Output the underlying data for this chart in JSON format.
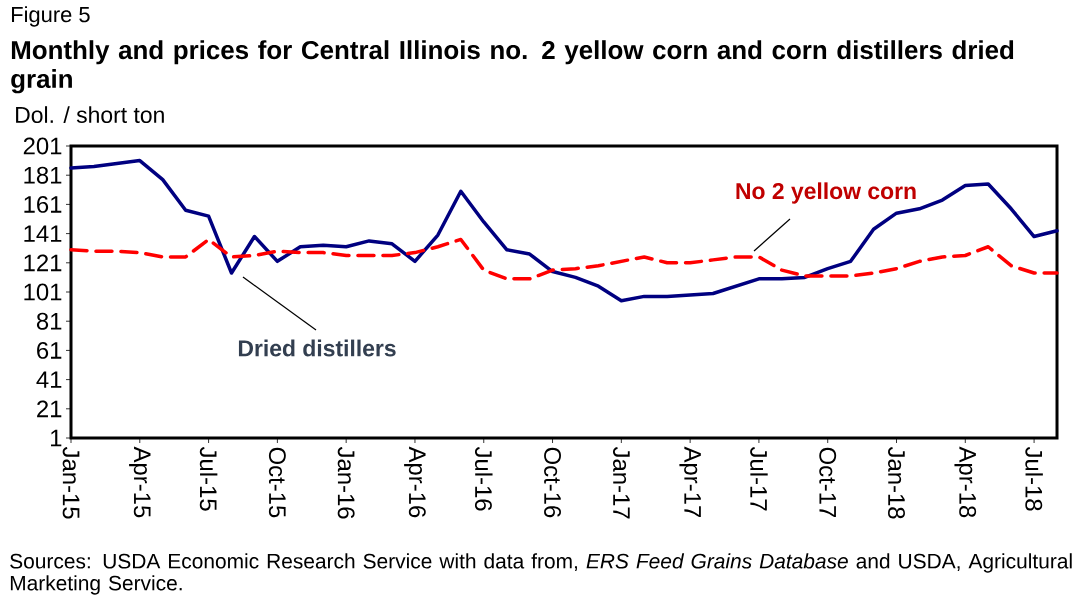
{
  "chart_data": {
    "type": "line",
    "title": "Monthly and prices for Central Illinois no. 2 yellow corn and corn distillers dried grain",
    "ylabel": "Dol. / short ton",
    "categories": [
      "Jan-15",
      null,
      null,
      "Apr-15",
      null,
      null,
      "Jul-15",
      null,
      null,
      "Oct-15",
      null,
      null,
      "Jan-16",
      null,
      null,
      "Apr-16",
      null,
      null,
      "Jul-16",
      null,
      null,
      "Oct-16",
      null,
      null,
      "Jan-17",
      null,
      null,
      "Apr-17",
      null,
      null,
      "Jul-17",
      null,
      null,
      "Oct-17",
      null,
      null,
      "Jan-18",
      null,
      null,
      "Apr-18",
      null,
      null,
      "Jul-18",
      null
    ],
    "series": [
      {
        "name": "Dried distillers",
        "color": "#000080",
        "line_style": "solid",
        "values": [
          186,
          187,
          189,
          191,
          178,
          157,
          153,
          114,
          139,
          122,
          132,
          133,
          132,
          136,
          134,
          122,
          140,
          170,
          149,
          130,
          127,
          115,
          111,
          105,
          95,
          98,
          98,
          99,
          100,
          105,
          110,
          110,
          111,
          117,
          122,
          144,
          155,
          158,
          164,
          174,
          175,
          158,
          139,
          143
        ]
      },
      {
        "name": "No 2 yellow corn",
        "color": "#ff0000",
        "line_style": "dashed",
        "values": [
          130,
          129,
          129,
          128,
          125,
          125,
          137,
          125,
          126,
          129,
          128,
          128,
          126,
          126,
          126,
          128,
          132,
          137,
          116,
          110,
          110,
          116,
          117,
          119,
          122,
          125,
          121,
          121,
          123,
          125,
          125,
          116,
          112,
          112,
          112,
          114,
          117,
          122,
          125,
          126,
          132,
          119,
          114,
          114
        ]
      }
    ],
    "ylim": [
      1,
      201
    ],
    "yticks": [
      1,
      21,
      41,
      61,
      81,
      101,
      121,
      141,
      161,
      181,
      201
    ],
    "grid": false,
    "legend": false,
    "marker": "none",
    "annotations": [
      "Figure 5",
      "Sources:  USDA Economic Research Service with data from, *ERS Feed Grains Database* and USDA, Agricultural Marketing Service."
    ]
  }
}
